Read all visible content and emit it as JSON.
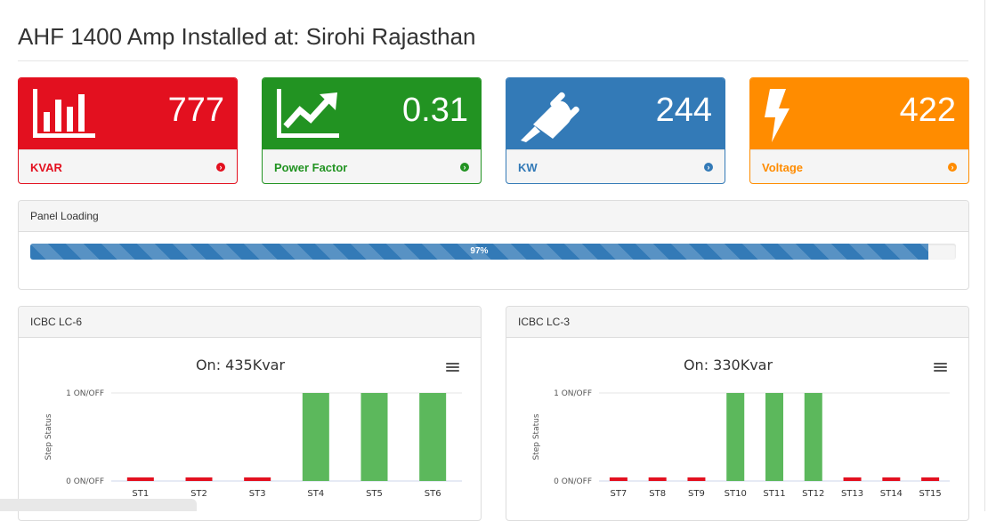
{
  "page": {
    "title": "AHF 1400 Amp Installed at: Sirohi Rajasthan"
  },
  "cards": [
    {
      "id": "kvar",
      "value": "777",
      "label": "KVAR",
      "icon": "bar-chart-icon",
      "color": "#e3101f"
    },
    {
      "id": "pf",
      "value": "0.31",
      "label": "Power Factor",
      "icon": "trend-up-icon",
      "color": "#229322"
    },
    {
      "id": "kw",
      "value": "244",
      "label": "KW",
      "icon": "plug-icon",
      "color": "#337ab7"
    },
    {
      "id": "volt",
      "value": "422",
      "label": "Voltage",
      "icon": "bolt-icon",
      "color": "#ff8c00"
    }
  ],
  "panel_loading": {
    "title": "Panel Loading",
    "percent": 97,
    "label": "97%"
  },
  "chart_data": [
    {
      "panel_title": "ICBC LC-6",
      "type": "bar",
      "title": "On: 435Kvar",
      "ylabel": "Step Status",
      "ytick_labels": [
        "1 ON/OFF",
        "0 ON/OFF"
      ],
      "categories": [
        "ST1",
        "ST2",
        "ST3",
        "ST4",
        "ST5",
        "ST6"
      ],
      "values": [
        0,
        0,
        0,
        1,
        1,
        1
      ],
      "ylim": [
        0,
        1
      ],
      "on_color": "#5cb85c",
      "off_color": "#e3101f"
    },
    {
      "panel_title": "ICBC LC-3",
      "type": "bar",
      "title": "On: 330Kvar",
      "ylabel": "Step Status",
      "ytick_labels": [
        "1 ON/OFF",
        "0 ON/OFF"
      ],
      "categories": [
        "ST7",
        "ST8",
        "ST9",
        "ST10",
        "ST11",
        "ST12",
        "ST13",
        "ST14",
        "ST15"
      ],
      "values": [
        0,
        0,
        0,
        1,
        1,
        1,
        0,
        0,
        0
      ],
      "ylim": [
        0,
        1
      ],
      "on_color": "#5cb85c",
      "off_color": "#e3101f"
    }
  ]
}
